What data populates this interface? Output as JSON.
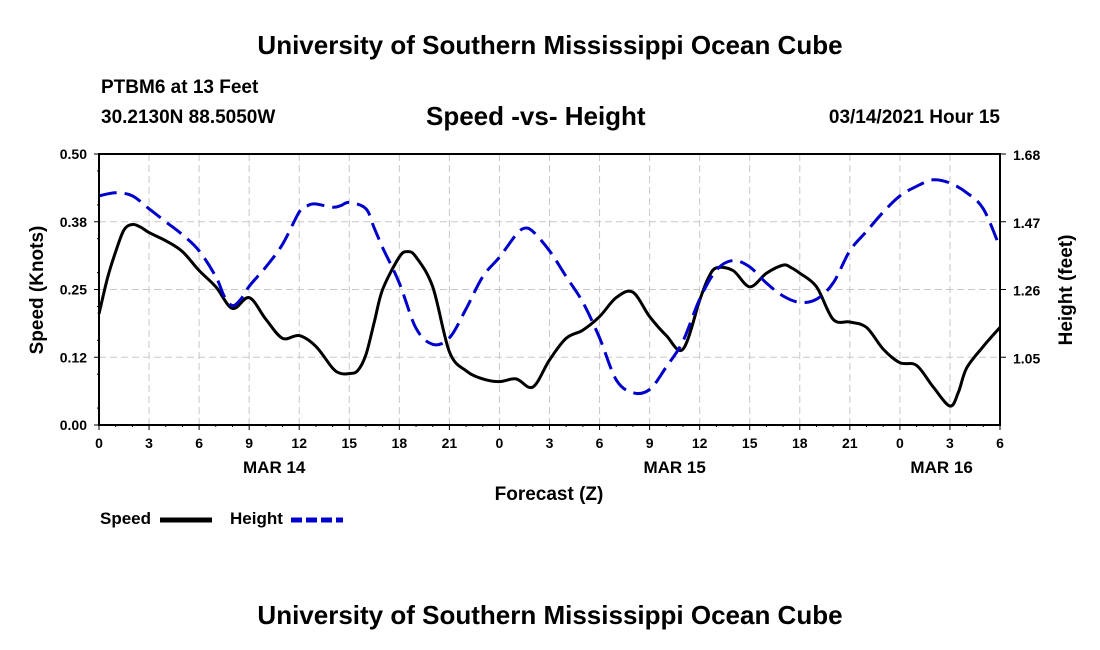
{
  "header": {
    "title": "University of Southern Mississippi Ocean Cube",
    "station": "PTBM6 at 13 Feet",
    "coords": "30.2130N 88.5050W",
    "chart_title": "Speed -vs- Height",
    "date": "03/14/2021 Hour 15"
  },
  "footer": {
    "title": "University of Southern Mississippi Ocean Cube"
  },
  "chart_data": {
    "type": "line",
    "title": "Speed -vs- Height",
    "xlabel": "Forecast (Z)",
    "ylabel": "Speed (Knots)",
    "y2label": "Height (feet)",
    "x_range": [
      0,
      54
    ],
    "ylim": [
      0,
      0.5
    ],
    "y2lim": [
      0.84,
      1.68
    ],
    "y_ticks": [
      "0.00",
      "0.12",
      "0.25",
      "0.38",
      "0.50"
    ],
    "y2_ticks": [
      "1.05",
      "1.26",
      "1.47",
      "1.68"
    ],
    "y2_tick_values": [
      1.05,
      1.26,
      1.47,
      1.68
    ],
    "x_ticks": [
      "0",
      "3",
      "6",
      "9",
      "12",
      "15",
      "18",
      "21",
      "0",
      "3",
      "6",
      "9",
      "12",
      "15",
      "18",
      "21",
      "0",
      "3",
      "6"
    ],
    "date_labels": [
      {
        "label": "MAR 14",
        "at": 10.5
      },
      {
        "label": "MAR 15",
        "at": 34.5
      },
      {
        "label": "MAR 16",
        "at": 50.5
      }
    ],
    "grid": true,
    "legend": [
      "Speed",
      "Height"
    ],
    "legend_position": "bottom-left",
    "series": [
      {
        "name": "Speed",
        "axis": "left",
        "color": "#000000",
        "style": "solid",
        "x": [
          0,
          0.5,
          1,
          1.5,
          2,
          2.5,
          3,
          4,
          5,
          6,
          7,
          8,
          9,
          10,
          11,
          12,
          13,
          14,
          14.5,
          15,
          15.5,
          16,
          16.5,
          17,
          18,
          18.5,
          19,
          20,
          21,
          22,
          23,
          24,
          25,
          26,
          27,
          28,
          29,
          30,
          31,
          32,
          33,
          34,
          35,
          36,
          36.5,
          37,
          38,
          39,
          40,
          41,
          41.5,
          42,
          43,
          44,
          45,
          46,
          47,
          48,
          49,
          50,
          51,
          51.5,
          52,
          53,
          54
        ],
        "values": [
          0.205,
          0.27,
          0.32,
          0.36,
          0.37,
          0.365,
          0.355,
          0.34,
          0.32,
          0.285,
          0.255,
          0.215,
          0.235,
          0.195,
          0.16,
          0.165,
          0.145,
          0.105,
          0.095,
          0.095,
          0.1,
          0.13,
          0.19,
          0.25,
          0.31,
          0.32,
          0.31,
          0.255,
          0.135,
          0.1,
          0.085,
          0.08,
          0.085,
          0.07,
          0.12,
          0.16,
          0.175,
          0.2,
          0.235,
          0.245,
          0.2,
          0.165,
          0.14,
          0.23,
          0.27,
          0.29,
          0.285,
          0.255,
          0.28,
          0.295,
          0.29,
          0.28,
          0.255,
          0.195,
          0.19,
          0.18,
          0.14,
          0.115,
          0.11,
          0.07,
          0.035,
          0.06,
          0.105,
          0.145,
          0.18
        ]
      },
      {
        "name": "Height",
        "axis": "right",
        "color": "#0000cc",
        "style": "dashed",
        "x": [
          0,
          1,
          2,
          3,
          4,
          5,
          6,
          7,
          7.5,
          8,
          8.5,
          9,
          10,
          11,
          12,
          12.5,
          13,
          14,
          14.5,
          15,
          16,
          16.5,
          17,
          18,
          19,
          20,
          21,
          22,
          23,
          24,
          25,
          25.5,
          26,
          27,
          28,
          29,
          30,
          31,
          32,
          33,
          34,
          35,
          36,
          37,
          38,
          39,
          40,
          41,
          42,
          43,
          44,
          45,
          46,
          47,
          48,
          49,
          50,
          51,
          52,
          53,
          54
        ],
        "values": [
          1.55,
          1.56,
          1.55,
          1.51,
          1.47,
          1.43,
          1.38,
          1.3,
          1.24,
          1.21,
          1.23,
          1.27,
          1.33,
          1.4,
          1.5,
          1.52,
          1.525,
          1.515,
          1.52,
          1.53,
          1.51,
          1.45,
          1.39,
          1.28,
          1.14,
          1.09,
          1.11,
          1.2,
          1.3,
          1.36,
          1.43,
          1.45,
          1.44,
          1.38,
          1.3,
          1.22,
          1.11,
          0.98,
          0.94,
          0.95,
          1.02,
          1.1,
          1.23,
          1.32,
          1.35,
          1.33,
          1.28,
          1.24,
          1.22,
          1.23,
          1.28,
          1.38,
          1.44,
          1.5,
          1.55,
          1.58,
          1.6,
          1.59,
          1.56,
          1.51,
          1.39
        ]
      }
    ]
  }
}
